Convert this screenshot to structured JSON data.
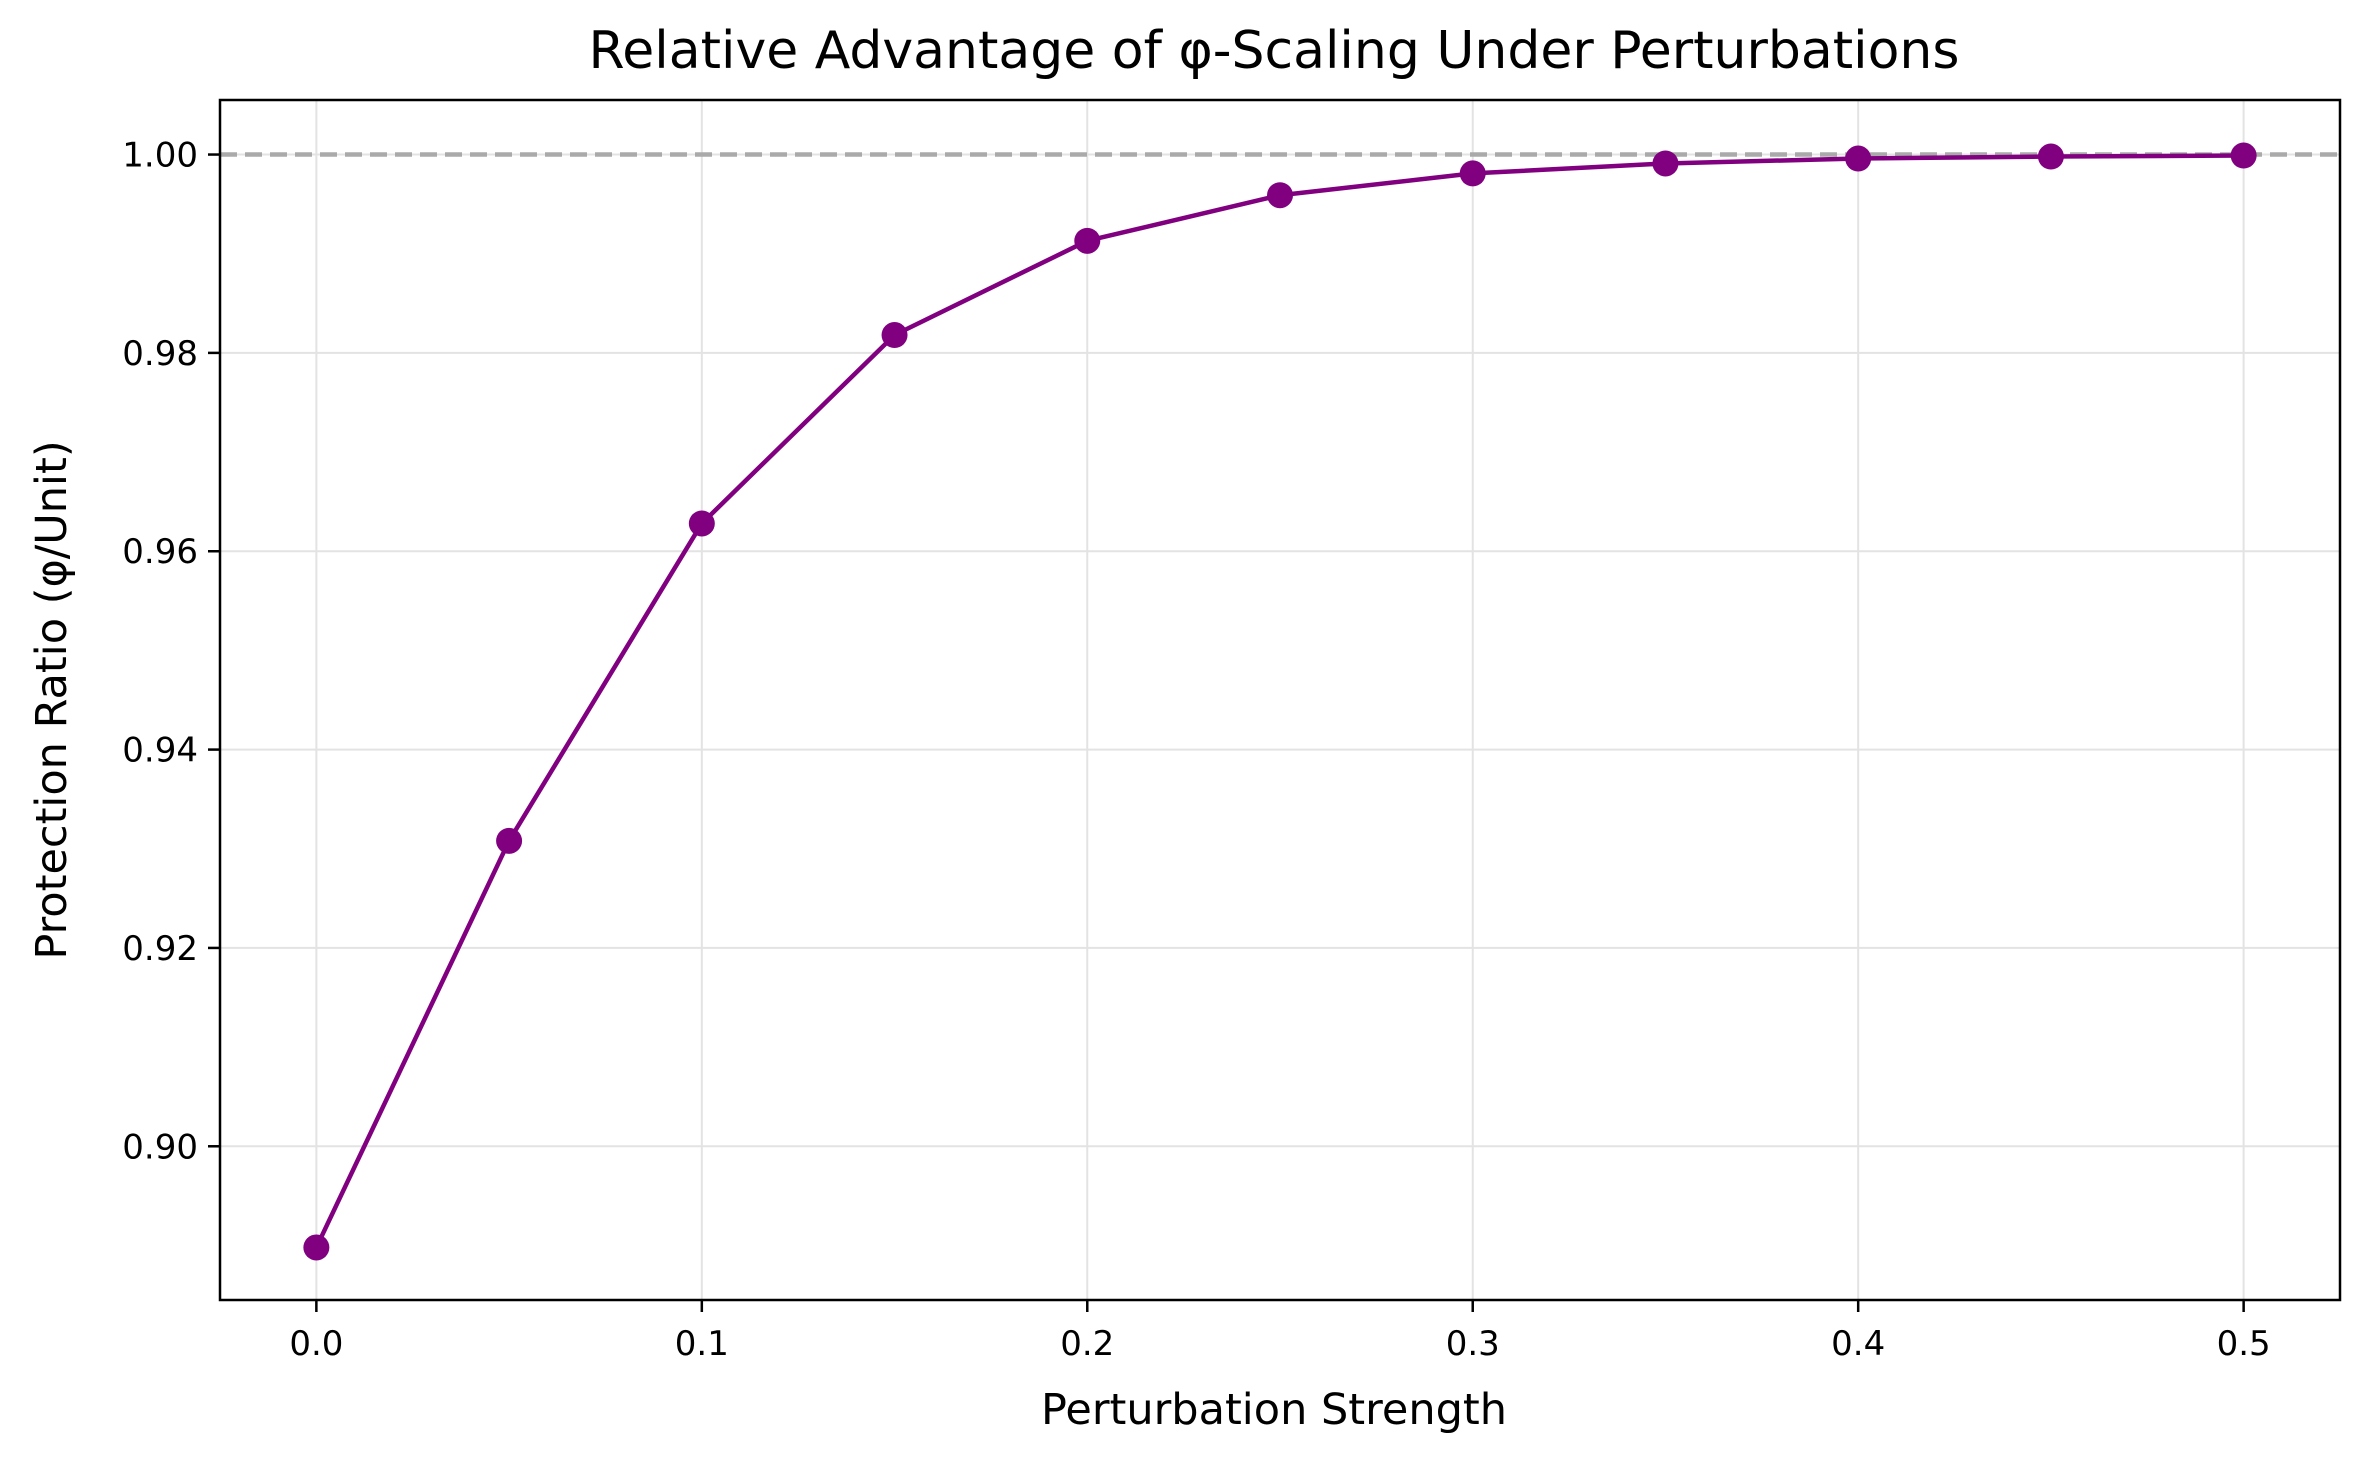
{
  "chart_data": {
    "type": "line",
    "title": "Relative Advantage of φ-Scaling Under Perturbations",
    "xlabel": "Perturbation Strength",
    "ylabel": "Protection Ratio (φ/Unit)",
    "xlim": [
      -0.025,
      0.525
    ],
    "ylim": [
      0.8845,
      1.0055
    ],
    "xticks": [
      0.0,
      0.1,
      0.2,
      0.3,
      0.4,
      0.5
    ],
    "xtick_labels": [
      "0.0",
      "0.1",
      "0.2",
      "0.3",
      "0.4",
      "0.5"
    ],
    "yticks": [
      0.9,
      0.92,
      0.94,
      0.96,
      0.98,
      1.0
    ],
    "ytick_labels": [
      "0.90",
      "0.92",
      "0.94",
      "0.96",
      "0.98",
      "1.00"
    ],
    "grid": true,
    "reference_line": {
      "y": 1.0,
      "style": "dashed",
      "color": "#aaaaaa"
    },
    "series": [
      {
        "color": "#800080",
        "marker": "circle",
        "x": [
          0.0,
          0.05,
          0.1,
          0.15,
          0.2,
          0.25,
          0.3,
          0.35,
          0.4,
          0.45,
          0.5
        ],
        "y": [
          0.8898,
          0.9308,
          0.9628,
          0.9818,
          0.9913,
          0.9959,
          0.9981,
          0.9991,
          0.9996,
          0.9998,
          0.9999
        ]
      }
    ]
  }
}
